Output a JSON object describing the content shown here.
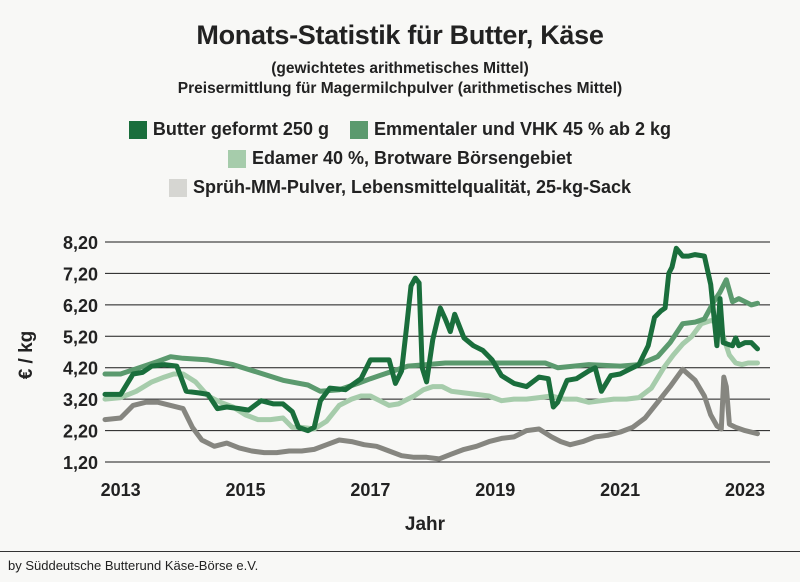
{
  "title": "Monats-Statistik für Butter, Käse",
  "subtitle1": "(gewichtetes arithmetisches Mittel)",
  "subtitle2": "Preisermittlung für Magermilchpulver (arithmetisches Mittel)",
  "footer": "by Süddeutsche Butterund Käse-Börse e.V.",
  "colors": {
    "butter": "#1a6e3c",
    "emmentaler": "#5b9a6e",
    "edamer": "#a6ccab",
    "spruh": "#868680",
    "grid": "#1a1a1a"
  },
  "chart_data": {
    "type": "line",
    "title": "Monats-Statistik für Butter, Käse",
    "xlabel": "Jahr",
    "ylabel": "€ / kg",
    "ylim": [
      1.2,
      8.2
    ],
    "yticks": [
      "8,20",
      "7,20",
      "6,20",
      "5,20",
      "4,20",
      "3,20",
      "2,20",
      "1,20"
    ],
    "ytick_values": [
      8.2,
      7.2,
      6.2,
      5.2,
      4.2,
      3.2,
      2.2,
      1.2
    ],
    "xticks": [
      "2013",
      "2015",
      "2017",
      "2019",
      "2021",
      "2023"
    ],
    "xtick_values": [
      2013.0,
      2015.0,
      2017.0,
      2019.0,
      2021.0,
      2023.0
    ],
    "xlim": [
      2012.75,
      2023.4
    ],
    "grid": "horizontal",
    "series": [
      {
        "name": "Butter geformt 250 g",
        "color": "#1a6e3c",
        "x": [
          2012.75,
          2013.0,
          2013.2,
          2013.35,
          2013.5,
          2013.7,
          2013.9,
          2014.05,
          2014.25,
          2014.4,
          2014.55,
          2014.7,
          2014.9,
          2015.05,
          2015.25,
          2015.45,
          2015.6,
          2015.75,
          2015.85,
          2016.0,
          2016.1,
          2016.2,
          2016.35,
          2016.6,
          2016.85,
          2017.0,
          2017.15,
          2017.3,
          2017.4,
          2017.5,
          2017.58,
          2017.65,
          2017.72,
          2017.78,
          2017.83,
          2017.9,
          2018.0,
          2018.12,
          2018.2,
          2018.28,
          2018.35,
          2018.5,
          2018.65,
          2018.8,
          2018.95,
          2019.1,
          2019.3,
          2019.5,
          2019.7,
          2019.85,
          2019.93,
          2020.0,
          2020.15,
          2020.3,
          2020.5,
          2020.6,
          2020.7,
          2020.85,
          2021.0,
          2021.15,
          2021.3,
          2021.45,
          2021.55,
          2021.65,
          2021.72,
          2021.78,
          2021.83,
          2021.9,
          2022.0,
          2022.1,
          2022.2,
          2022.35,
          2022.45,
          2022.55,
          2022.6,
          2022.65,
          2022.72,
          2022.8,
          2022.85,
          2022.9,
          2023.0,
          2023.1,
          2023.2
        ],
        "y": [
          3.35,
          3.35,
          4.0,
          4.05,
          4.25,
          4.3,
          4.25,
          3.45,
          3.4,
          3.35,
          2.9,
          2.95,
          2.9,
          2.85,
          3.15,
          3.05,
          3.05,
          2.8,
          2.3,
          2.2,
          2.3,
          3.15,
          3.55,
          3.5,
          3.85,
          4.45,
          4.45,
          4.45,
          3.7,
          4.1,
          5.5,
          6.8,
          7.05,
          6.9,
          4.2,
          3.75,
          5.1,
          6.1,
          5.75,
          5.35,
          5.9,
          5.15,
          4.9,
          4.75,
          4.45,
          3.95,
          3.7,
          3.6,
          3.9,
          3.85,
          2.95,
          3.1,
          3.8,
          3.85,
          4.1,
          4.2,
          3.45,
          3.95,
          4.0,
          4.15,
          4.3,
          4.9,
          5.8,
          6.0,
          6.1,
          7.2,
          7.4,
          8.0,
          7.75,
          7.75,
          7.8,
          7.75,
          6.85,
          4.9,
          6.4,
          5.0,
          4.95,
          4.9,
          5.15,
          4.9,
          5.0,
          5.0,
          4.8
        ]
      },
      {
        "name": "Emmentaler und VHK 45 % ab 2 kg",
        "color": "#5b9a6e",
        "x": [
          2012.75,
          2013.0,
          2013.3,
          2013.6,
          2013.8,
          2014.0,
          2014.4,
          2014.8,
          2015.2,
          2015.6,
          2016.0,
          2016.2,
          2016.5,
          2016.8,
          2017.0,
          2017.3,
          2017.6,
          2017.9,
          2018.2,
          2018.6,
          2019.0,
          2019.4,
          2019.8,
          2020.0,
          2020.5,
          2021.0,
          2021.3,
          2021.6,
          2021.8,
          2022.0,
          2022.2,
          2022.35,
          2022.5,
          2022.6,
          2022.7,
          2022.8,
          2022.9,
          2023.0,
          2023.1,
          2023.2
        ],
        "y": [
          4.0,
          4.0,
          4.2,
          4.4,
          4.55,
          4.5,
          4.45,
          4.3,
          4.05,
          3.8,
          3.65,
          3.45,
          3.5,
          3.7,
          3.85,
          4.05,
          4.25,
          4.3,
          4.35,
          4.35,
          4.35,
          4.35,
          4.35,
          4.2,
          4.3,
          4.25,
          4.3,
          4.55,
          5.0,
          5.6,
          5.65,
          5.75,
          6.3,
          6.6,
          7.0,
          6.3,
          6.4,
          6.3,
          6.2,
          6.25
        ]
      },
      {
        "name": "Edamer 40 %, Brotware Börsengebiet",
        "color": "#a6ccab",
        "x": [
          2012.75,
          2013.0,
          2013.25,
          2013.5,
          2013.7,
          2013.85,
          2014.0,
          2014.2,
          2014.4,
          2014.6,
          2014.8,
          2015.0,
          2015.2,
          2015.4,
          2015.6,
          2015.75,
          2015.9,
          2016.1,
          2016.3,
          2016.5,
          2016.7,
          2016.85,
          2017.0,
          2017.15,
          2017.3,
          2017.45,
          2017.55,
          2017.7,
          2017.85,
          2018.0,
          2018.15,
          2018.3,
          2018.5,
          2018.7,
          2018.9,
          2019.1,
          2019.3,
          2019.5,
          2019.7,
          2019.9,
          2020.1,
          2020.3,
          2020.5,
          2020.7,
          2020.9,
          2021.1,
          2021.3,
          2021.5,
          2021.7,
          2021.85,
          2022.0,
          2022.15,
          2022.3,
          2022.45,
          2022.55,
          2022.65,
          2022.75,
          2022.85,
          2022.95,
          2023.05,
          2023.2
        ],
        "y": [
          3.2,
          3.25,
          3.45,
          3.75,
          3.9,
          4.0,
          4.0,
          3.75,
          3.3,
          3.1,
          2.95,
          2.7,
          2.55,
          2.55,
          2.6,
          2.3,
          2.3,
          2.25,
          2.5,
          3.0,
          3.2,
          3.3,
          3.3,
          3.15,
          3.0,
          3.05,
          3.15,
          3.3,
          3.5,
          3.6,
          3.6,
          3.45,
          3.4,
          3.35,
          3.3,
          3.15,
          3.2,
          3.2,
          3.25,
          3.3,
          3.2,
          3.2,
          3.1,
          3.15,
          3.2,
          3.2,
          3.25,
          3.55,
          4.2,
          4.6,
          4.95,
          5.2,
          5.6,
          5.7,
          5.65,
          5.2,
          4.6,
          4.35,
          4.3,
          4.35,
          4.35
        ]
      },
      {
        "name": "Sprüh-MM-Pulver, Lebensmittelqualität, 25-kg-Sack",
        "color": "#868680",
        "x": [
          2012.75,
          2013.0,
          2013.2,
          2013.4,
          2013.6,
          2013.8,
          2014.0,
          2014.15,
          2014.3,
          2014.5,
          2014.7,
          2014.9,
          2015.1,
          2015.3,
          2015.5,
          2015.7,
          2015.9,
          2016.1,
          2016.3,
          2016.5,
          2016.7,
          2016.9,
          2017.1,
          2017.3,
          2017.5,
          2017.7,
          2017.9,
          2018.1,
          2018.3,
          2018.5,
          2018.7,
          2018.9,
          2019.1,
          2019.3,
          2019.5,
          2019.7,
          2019.9,
          2020.05,
          2020.2,
          2020.4,
          2020.6,
          2020.8,
          2021.0,
          2021.2,
          2021.4,
          2021.6,
          2021.8,
          2022.0,
          2022.2,
          2022.35,
          2022.45,
          2022.55,
          2022.62,
          2022.66,
          2022.7,
          2022.75,
          2022.85,
          2023.0,
          2023.2
        ],
        "y": [
          2.55,
          2.6,
          3.0,
          3.1,
          3.1,
          3.0,
          2.9,
          2.3,
          1.9,
          1.7,
          1.8,
          1.65,
          1.55,
          1.5,
          1.5,
          1.55,
          1.55,
          1.6,
          1.75,
          1.9,
          1.85,
          1.75,
          1.7,
          1.55,
          1.4,
          1.35,
          1.35,
          1.3,
          1.45,
          1.6,
          1.7,
          1.85,
          1.95,
          2.0,
          2.2,
          2.25,
          2.0,
          1.85,
          1.75,
          1.85,
          2.0,
          2.05,
          2.15,
          2.3,
          2.6,
          3.1,
          3.6,
          4.15,
          3.8,
          3.3,
          2.7,
          2.35,
          2.25,
          3.9,
          3.6,
          2.4,
          2.3,
          2.2,
          2.1
        ]
      }
    ]
  },
  "legend": [
    {
      "label": "Butter geformt 250 g",
      "color": "#1a6e3c"
    },
    {
      "label": "Emmentaler und VHK 45 % ab 2 kg",
      "color": "#5b9a6e"
    },
    {
      "label": "Edamer 40 %, Brotware Börsengebiet",
      "color": "#a6ccab"
    },
    {
      "label": "Sprüh-MM-Pulver, Lebensmittelqualität, 25-kg-Sack",
      "color": "#868680"
    }
  ]
}
